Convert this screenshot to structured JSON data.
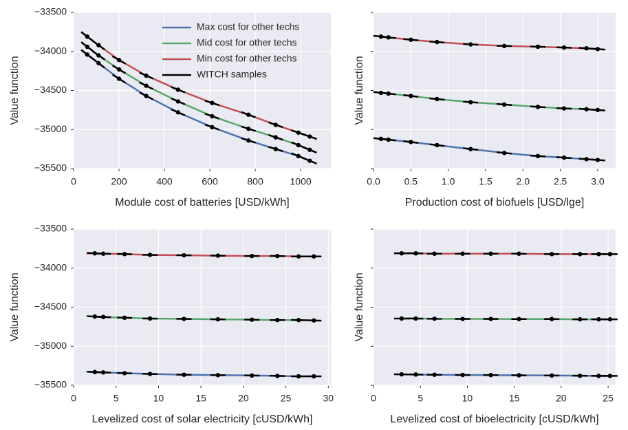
{
  "chart_data": [
    {
      "type": "line",
      "xlabel": "Module cost of batteries [USD/kWh]",
      "ylabel": "Value function",
      "xlim": [
        0,
        1133
      ],
      "ylim": [
        -35500,
        -33500
      ],
      "xticks": [
        0,
        200,
        400,
        600,
        800,
        1000
      ],
      "yticks": [
        {
          "value": -35500,
          "label": "−35500"
        },
        {
          "value": -35000,
          "label": "−35000"
        },
        {
          "value": -34500,
          "label": "−34500"
        },
        {
          "value": -34000,
          "label": "−34000"
        },
        {
          "value": -33500,
          "label": "−33500"
        }
      ],
      "show_ytick_labels": true,
      "grid": true,
      "legend": "upper right",
      "series": [
        {
          "name": "Max cost for other techs",
          "color": "#4c72b0",
          "x": [
            35,
            60,
            110,
            200,
            320,
            460,
            610,
            770,
            890,
            990,
            1040
          ],
          "values": [
            -33980,
            -34040,
            -34150,
            -34350,
            -34570,
            -34780,
            -34970,
            -35140,
            -35250,
            -35340,
            -35400
          ]
        },
        {
          "name": "Mid cost for other techs",
          "color": "#55a868",
          "x": [
            35,
            60,
            110,
            200,
            320,
            460,
            610,
            770,
            890,
            990,
            1040
          ],
          "values": [
            -33880,
            -33940,
            -34050,
            -34230,
            -34440,
            -34640,
            -34830,
            -34990,
            -35100,
            -35200,
            -35260
          ]
        },
        {
          "name": "Min cost for other techs",
          "color": "#c44e52",
          "x": [
            35,
            60,
            110,
            200,
            320,
            460,
            610,
            770,
            890,
            990,
            1040
          ],
          "values": [
            -33750,
            -33810,
            -33920,
            -34110,
            -34310,
            -34490,
            -34660,
            -34810,
            -34940,
            -35040,
            -35090
          ]
        },
        {
          "name": "WITCH samples",
          "color": "#000000",
          "marker": "o",
          "x": [
            60,
            110,
            200,
            320,
            460,
            610,
            770,
            890,
            990,
            1040,
            60,
            110,
            200,
            320,
            460,
            610,
            770,
            890,
            990,
            1040,
            60,
            110,
            200,
            320,
            460,
            610,
            770,
            890,
            990,
            1040
          ],
          "values": [
            -34040,
            -34150,
            -34350,
            -34570,
            -34780,
            -34970,
            -35140,
            -35250,
            -35340,
            -35400,
            -33940,
            -34050,
            -34230,
            -34440,
            -34640,
            -34830,
            -34990,
            -35100,
            -35200,
            -35260,
            -33810,
            -33920,
            -34110,
            -34310,
            -34490,
            -34660,
            -34810,
            -34940,
            -35040,
            -35090
          ]
        }
      ]
    },
    {
      "type": "line",
      "xlabel": "Production cost of biofuels [USD/lge]",
      "ylabel": "Value function",
      "xlim": [
        0,
        3.24
      ],
      "ylim": [
        -35500,
        -33500
      ],
      "xticks": [
        {
          "value": 0,
          "label": "0.0"
        },
        0.5,
        {
          "value": 1,
          "label": "1.0"
        },
        1.5,
        {
          "value": 2,
          "label": "2.0"
        },
        2.5,
        {
          "value": 3,
          "label": "3.0"
        }
      ],
      "yticks": [
        -35500,
        -35000,
        -34500,
        -34000,
        -33500
      ],
      "show_ytick_labels": false,
      "grid": true,
      "series": [
        {
          "color": "#4c72b0",
          "x": [
            0,
            0.1,
            0.2,
            0.5,
            0.85,
            1.3,
            1.75,
            2.2,
            2.55,
            2.85,
            3.0
          ],
          "values": [
            -35110,
            -35120,
            -35130,
            -35160,
            -35200,
            -35250,
            -35300,
            -35340,
            -35360,
            -35380,
            -35390
          ]
        },
        {
          "color": "#55a868",
          "x": [
            0,
            0.1,
            0.2,
            0.5,
            0.85,
            1.3,
            1.75,
            2.2,
            2.55,
            2.85,
            3.0
          ],
          "values": [
            -34520,
            -34530,
            -34540,
            -34570,
            -34610,
            -34650,
            -34680,
            -34710,
            -34730,
            -34740,
            -34750
          ]
        },
        {
          "color": "#c44e52",
          "x": [
            0,
            0.1,
            0.2,
            0.5,
            0.85,
            1.3,
            1.75,
            2.2,
            2.55,
            2.85,
            3.0
          ],
          "values": [
            -33800,
            -33810,
            -33820,
            -33850,
            -33880,
            -33910,
            -33930,
            -33940,
            -33950,
            -33960,
            -33970
          ]
        },
        {
          "color": "#000000",
          "marker": "o",
          "x": [
            0.1,
            0.2,
            0.5,
            0.85,
            1.3,
            1.75,
            2.2,
            2.55,
            2.85,
            3.0,
            0.1,
            0.2,
            0.5,
            0.85,
            1.3,
            1.75,
            2.2,
            2.55,
            2.85,
            3.0,
            0.1,
            0.2,
            0.5,
            0.85,
            1.3,
            1.75,
            2.2,
            2.55,
            2.85,
            3.0
          ],
          "values": [
            -35120,
            -35130,
            -35160,
            -35200,
            -35250,
            -35300,
            -35340,
            -35360,
            -35380,
            -35390,
            -34530,
            -34540,
            -34570,
            -34610,
            -34650,
            -34680,
            -34710,
            -34730,
            -34740,
            -34750,
            -33810,
            -33820,
            -33850,
            -33880,
            -33910,
            -33930,
            -33940,
            -33950,
            -33960,
            -33970
          ]
        }
      ]
    },
    {
      "type": "line",
      "xlabel": "Levelized cost of solar electricity [cUSD/kWh]",
      "ylabel": "Value function",
      "xlim": [
        0,
        30.3
      ],
      "ylim": [
        -35500,
        -33500
      ],
      "xticks": [
        0,
        5,
        10,
        15,
        20,
        25,
        30
      ],
      "yticks": [
        {
          "value": -35500,
          "label": "−35500"
        },
        {
          "value": -35000,
          "label": "−35000"
        },
        {
          "value": -34500,
          "label": "−34500"
        },
        {
          "value": -34000,
          "label": "−34000"
        },
        {
          "value": -33500,
          "label": "−33500"
        }
      ],
      "show_ytick_labels": true,
      "grid": true,
      "series": [
        {
          "color": "#4c72b0",
          "x": [
            1.5,
            2.5,
            3.5,
            6,
            9,
            13,
            17,
            21,
            24,
            26.5,
            28.3
          ],
          "values": [
            -35325,
            -35330,
            -35335,
            -35345,
            -35355,
            -35365,
            -35370,
            -35375,
            -35380,
            -35385,
            -35385
          ]
        },
        {
          "color": "#55a868",
          "x": [
            1.5,
            2.5,
            3.5,
            6,
            9,
            13,
            17,
            21,
            24,
            26.5,
            28.3
          ],
          "values": [
            -34615,
            -34620,
            -34625,
            -34635,
            -34645,
            -34650,
            -34655,
            -34660,
            -34665,
            -34665,
            -34670
          ]
        },
        {
          "color": "#c44e52",
          "x": [
            1.5,
            2.5,
            3.5,
            6,
            9,
            13,
            17,
            21,
            24,
            26.5,
            28.3
          ],
          "values": [
            -33810,
            -33810,
            -33815,
            -33820,
            -33830,
            -33835,
            -33840,
            -33845,
            -33845,
            -33850,
            -33850
          ]
        },
        {
          "color": "#000000",
          "marker": "o",
          "x": [
            2.5,
            3.5,
            6,
            9,
            13,
            17,
            21,
            24,
            26.5,
            28.3,
            2.5,
            3.5,
            6,
            9,
            13,
            17,
            21,
            24,
            26.5,
            28.3,
            2.5,
            3.5,
            6,
            9,
            13,
            17,
            21,
            24,
            26.5,
            28.3
          ],
          "values": [
            -35330,
            -35335,
            -35345,
            -35355,
            -35365,
            -35370,
            -35375,
            -35380,
            -35385,
            -35385,
            -34620,
            -34625,
            -34635,
            -34645,
            -34650,
            -34655,
            -34660,
            -34665,
            -34665,
            -34670,
            -33810,
            -33815,
            -33820,
            -33830,
            -33835,
            -33840,
            -33845,
            -33845,
            -33850,
            -33850
          ]
        }
      ]
    },
    {
      "type": "line",
      "xlabel": "Levelized cost of bioelectricity [cUSD/kWh]",
      "ylabel": "Value function",
      "xlim": [
        0,
        25.8
      ],
      "ylim": [
        -35500,
        -33500
      ],
      "xticks": [
        0,
        5,
        10,
        15,
        20,
        25
      ],
      "yticks": [
        -35500,
        -35000,
        -34500,
        -34000,
        -33500
      ],
      "show_ytick_labels": false,
      "grid": true,
      "series": [
        {
          "color": "#4c72b0",
          "x": [
            3,
            4.5,
            6.5,
            9.5,
            12.5,
            15.5,
            19,
            22,
            24,
            25.2
          ],
          "values": [
            -35360,
            -35362,
            -35365,
            -35368,
            -35370,
            -35372,
            -35375,
            -35378,
            -35380,
            -35380
          ]
        },
        {
          "color": "#55a868",
          "x": [
            3,
            4.5,
            6.5,
            9.5,
            12.5,
            15.5,
            19,
            22,
            24,
            25.2
          ],
          "values": [
            -34645,
            -34645,
            -34648,
            -34650,
            -34650,
            -34652,
            -34652,
            -34655,
            -34655,
            -34655
          ]
        },
        {
          "color": "#c44e52",
          "x": [
            3,
            4.5,
            6.5,
            9.5,
            12.5,
            15.5,
            19,
            22,
            24,
            25.2
          ],
          "values": [
            -33810,
            -33810,
            -33815,
            -33815,
            -33815,
            -33815,
            -33820,
            -33820,
            -33820,
            -33820
          ]
        },
        {
          "color": "#000000",
          "marker": "o",
          "x": [
            3,
            4.5,
            6.5,
            9.5,
            12.5,
            15.5,
            19,
            22,
            24,
            25.2,
            3,
            4.5,
            6.5,
            9.5,
            12.5,
            15.5,
            19,
            22,
            24,
            25.2,
            3,
            4.5,
            6.5,
            9.5,
            12.5,
            15.5,
            19,
            22,
            24,
            25.2
          ],
          "values": [
            -35360,
            -35362,
            -35365,
            -35368,
            -35370,
            -35372,
            -35375,
            -35378,
            -35380,
            -35380,
            -34645,
            -34645,
            -34648,
            -34650,
            -34650,
            -34652,
            -34652,
            -34655,
            -34655,
            -34655,
            -33810,
            -33810,
            -33815,
            -33815,
            -33815,
            -33815,
            -33820,
            -33820,
            -33820,
            -33820
          ]
        }
      ]
    }
  ]
}
